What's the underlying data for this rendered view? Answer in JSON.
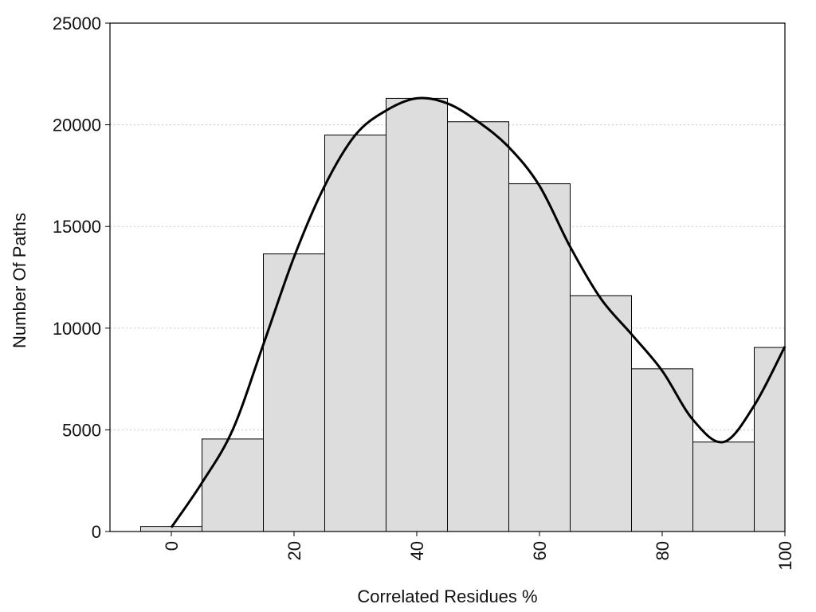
{
  "chart_data": {
    "type": "bar",
    "title": "",
    "xlabel": "Correlated Residues %",
    "ylabel": "Number Of Paths",
    "xlim": [
      -10,
      100
    ],
    "ylim": [
      0,
      25000
    ],
    "bin_width": 10,
    "x_ticks": [
      0,
      20,
      40,
      60,
      80,
      100
    ],
    "x_tick_labels": [
      "0",
      "20",
      "40",
      "60",
      "80",
      "100"
    ],
    "y_ticks": [
      0,
      5000,
      10000,
      15000,
      20000,
      25000
    ],
    "y_tick_labels": [
      "0",
      "5000",
      "10000",
      "15000",
      "20000",
      "25000"
    ],
    "grid": "horizontal dotted",
    "series": [
      {
        "type": "bar",
        "x": [
          0,
          10,
          20,
          30,
          40,
          50,
          60,
          70,
          80,
          90,
          100
        ],
        "values": [
          250,
          4550,
          13650,
          19500,
          21300,
          20150,
          17100,
          11600,
          8000,
          4400,
          9050
        ]
      },
      {
        "type": "line",
        "x": [
          0,
          5,
          10,
          15,
          20,
          25,
          30,
          35,
          40,
          45,
          50,
          55,
          60,
          65,
          70,
          75,
          80,
          85,
          90,
          95,
          100
        ],
        "values": [
          200,
          2400,
          5000,
          9200,
          13500,
          17000,
          19500,
          20700,
          21300,
          21050,
          20150,
          18900,
          17000,
          14000,
          11450,
          9700,
          7900,
          5500,
          4400,
          6200,
          9100
        ]
      }
    ],
    "colors": {
      "bar_fill": "#dddddd",
      "bar_stroke": "#000000",
      "line": "#000000",
      "grid": "#c8c8c8"
    }
  }
}
